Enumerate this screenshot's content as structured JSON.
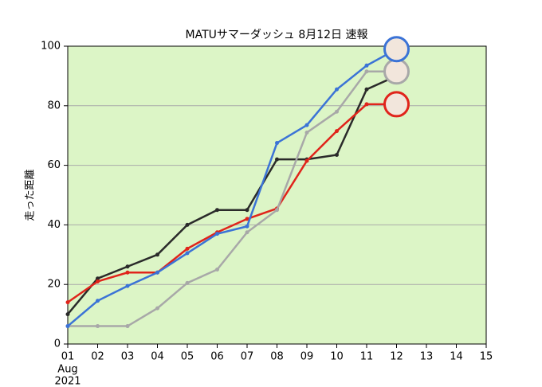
{
  "chart_data": {
    "type": "line",
    "title": "MATUサマーダッシュ 8月12日 速報",
    "y_label": "走った距離",
    "xlim": [
      1,
      15
    ],
    "xticks": [
      {
        "value": 1,
        "label": "01"
      },
      {
        "value": 2,
        "label": "02"
      },
      {
        "value": 3,
        "label": "03"
      },
      {
        "value": 4,
        "label": "04"
      },
      {
        "value": 5,
        "label": "05"
      },
      {
        "value": 6,
        "label": "06"
      },
      {
        "value": 7,
        "label": "07"
      },
      {
        "value": 8,
        "label": "08"
      },
      {
        "value": 9,
        "label": "09"
      },
      10,
      11,
      12,
      13,
      14,
      15
    ],
    "xtick_sublabels": [
      "Aug",
      "2021"
    ],
    "ylim": [
      0,
      100
    ],
    "yticks": [
      0,
      20,
      40,
      60,
      80,
      100
    ],
    "grid": true,
    "plot_background": "#dcf5c6",
    "x": [
      1,
      2,
      3,
      4,
      5,
      6,
      7,
      8,
      9,
      10,
      11,
      12
    ],
    "series": [
      {
        "color": "#2a2a2a",
        "values": [
          10,
          22,
          26,
          30,
          40,
          45,
          45,
          62,
          62,
          63.5,
          85.5,
          90
        ]
      },
      {
        "color": "#e0241b",
        "end_icon": true,
        "values": [
          14,
          21,
          24,
          24,
          32,
          37.5,
          42,
          45.5,
          61.5,
          71.5,
          80.5,
          80.5
        ]
      },
      {
        "color": "#a8a8a8",
        "end_icon": true,
        "values": [
          6,
          6,
          6,
          12,
          20.5,
          25,
          37.5,
          45,
          71,
          78,
          91.5,
          91.5
        ]
      },
      {
        "color": "#3b73d6",
        "end_icon": true,
        "values": [
          6,
          14.5,
          19.5,
          24,
          30.5,
          37,
          39.5,
          67.5,
          73.5,
          85.5,
          93.5,
          99
        ]
      }
    ]
  }
}
